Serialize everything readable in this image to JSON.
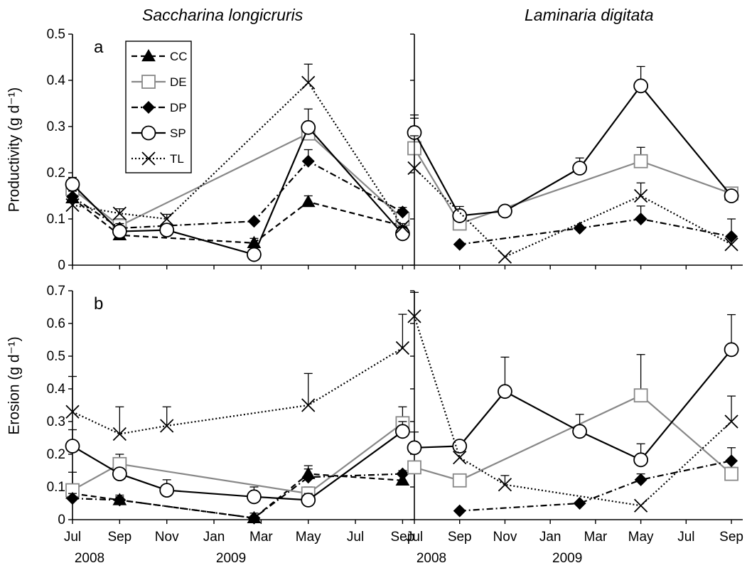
{
  "columns": [
    "Saccharina longicruris",
    "Laminaria digitata"
  ],
  "row_labels": [
    "a",
    "b"
  ],
  "x_axis": {
    "range": [
      0,
      14.5
    ],
    "tick_values": [
      0,
      2,
      4,
      6,
      8,
      10,
      12,
      14
    ],
    "tick_labels": [
      "Jul",
      "Sep",
      "Nov",
      "Jan",
      "Mar",
      "May",
      "Jul",
      "Sep"
    ],
    "year_labels": [
      {
        "label": "2008",
        "x": 0
      },
      {
        "label": "2009",
        "x": 6
      }
    ]
  },
  "legend": {
    "placement": "top-left of panel a",
    "entries": [
      {
        "label": "CC",
        "marker": "triangle-filled",
        "line": "dashed",
        "color": "#000000"
      },
      {
        "label": "DE",
        "marker": "square-open",
        "line": "solid",
        "color": "#888888"
      },
      {
        "label": "DP",
        "marker": "diamond-filled",
        "line": "dashdot",
        "color": "#000000"
      },
      {
        "label": "SP",
        "marker": "circle-open",
        "line": "solid",
        "color": "#000000"
      },
      {
        "label": "TL",
        "marker": "x",
        "line": "dotted",
        "color": "#000000"
      }
    ]
  },
  "chart_data": [
    {
      "type": "line",
      "panel": "a",
      "species": "Saccharina longicruris",
      "ylabel": "Productivity (g d⁻¹)",
      "ylim": [
        0,
        0.5
      ],
      "yticks": [
        0,
        0.1,
        0.2,
        0.3,
        0.4,
        0.5
      ],
      "ytick_labels": [
        "0",
        "0.1",
        "0.2",
        "0.3",
        "0.4",
        "0.5"
      ],
      "series": [
        {
          "name": "CC",
          "points": [
            [
              0,
              0.145,
              0.155
            ],
            [
              2,
              0.065,
              0.075
            ],
            [
              7.7,
              0.048,
              0.058
            ],
            [
              10,
              0.137,
              0.15
            ],
            [
              14,
              0.085,
              0.095
            ]
          ]
        },
        {
          "name": "DE",
          "points": [
            [
              0,
              0.165,
              0.178
            ],
            [
              2,
              0.085,
              0.1
            ],
            [
              10,
              0.285,
              0.3
            ],
            [
              14,
              0.1,
              0.11
            ]
          ]
        },
        {
          "name": "DP",
          "points": [
            [
              0,
              0.148,
              0.16
            ],
            [
              2,
              0.08,
              0.09
            ],
            [
              7.7,
              0.095,
              null
            ],
            [
              10,
              0.225,
              0.25
            ],
            [
              14,
              0.115,
              0.125
            ]
          ]
        },
        {
          "name": "SP",
          "points": [
            [
              0,
              0.175,
              0.19
            ],
            [
              2,
              0.073,
              0.083
            ],
            [
              4,
              0.076,
              0.086
            ],
            [
              7.7,
              0.023,
              0.033
            ],
            [
              10,
              0.298,
              0.338
            ],
            [
              14,
              0.068,
              0.076
            ]
          ]
        },
        {
          "name": "TL",
          "points": [
            [
              0,
              0.13,
              0.14
            ],
            [
              2,
              0.112,
              0.122
            ],
            [
              4,
              0.1,
              0.11
            ],
            [
              10,
              0.395,
              0.435
            ],
            [
              14,
              0.083,
              0.09
            ]
          ]
        }
      ]
    },
    {
      "type": "line",
      "panel": "a",
      "species": "Laminaria digitata",
      "ylabel": "",
      "ylim": [
        0,
        0.5
      ],
      "yticks": [
        0,
        0.1,
        0.2,
        0.3,
        0.4,
        0.5
      ],
      "ytick_labels": [],
      "series": [
        {
          "name": "DE",
          "points": [
            [
              0,
              0.253,
              0.318
            ],
            [
              2,
              0.09,
              0.11
            ],
            [
              10,
              0.225,
              0.255
            ],
            [
              14,
              0.155,
              0.162
            ]
          ]
        },
        {
          "name": "DP",
          "points": [
            [
              2,
              0.045,
              null
            ],
            [
              7.3,
              0.08,
              null
            ],
            [
              10,
              0.1,
              0.128
            ],
            [
              14,
              0.062,
              0.1
            ]
          ]
        },
        {
          "name": "SP",
          "points": [
            [
              0,
              0.287,
              0.325
            ],
            [
              2,
              0.107,
              0.127
            ],
            [
              4,
              0.117,
              0.127
            ],
            [
              7.3,
              0.21,
              0.232
            ],
            [
              10,
              0.388,
              0.43
            ],
            [
              14,
              0.15,
              0.158
            ]
          ]
        },
        {
          "name": "TL",
          "points": [
            [
              0,
              0.21,
              0.28
            ],
            [
              4,
              0.018,
              null
            ],
            [
              10,
              0.15,
              0.178
            ],
            [
              14,
              0.045,
              0.058
            ]
          ]
        }
      ]
    },
    {
      "type": "line",
      "panel": "b",
      "species": "Saccharina longicruris",
      "ylabel": "Erosion (g d⁻¹)",
      "ylim": [
        0,
        0.7
      ],
      "yticks": [
        0,
        0.1,
        0.2,
        0.3,
        0.4,
        0.5,
        0.6,
        0.7
      ],
      "ytick_labels": [
        "0",
        "0.1",
        "0.2",
        "0.3",
        "0.4",
        "0.5",
        "0.6",
        "0.7"
      ],
      "series": [
        {
          "name": "CC",
          "points": [
            [
              0,
              0.08,
              0.1
            ],
            [
              2,
              0.06,
              0.075
            ],
            [
              7.7,
              0.005,
              0.02
            ],
            [
              10,
              0.14,
              0.165
            ],
            [
              14,
              0.12,
              0.135
            ]
          ]
        },
        {
          "name": "DE",
          "points": [
            [
              0,
              0.09,
              0.145
            ],
            [
              2,
              0.17,
              0.2
            ],
            [
              10,
              0.08,
              0.1
            ],
            [
              14,
              0.295,
              0.345
            ]
          ]
        },
        {
          "name": "DP",
          "points": [
            [
              0,
              0.065,
              0.08
            ],
            [
              2,
              0.06,
              0.07
            ],
            [
              7.7,
              0.005,
              null
            ],
            [
              10,
              0.13,
              0.155
            ],
            [
              14,
              0.14,
              0.15
            ]
          ]
        },
        {
          "name": "SP",
          "points": [
            [
              0,
              0.225,
              0.275
            ],
            [
              2,
              0.14,
              0.15
            ],
            [
              4,
              0.09,
              0.122
            ],
            [
              7.7,
              0.07,
              0.1
            ],
            [
              10,
              0.06,
              0.08
            ],
            [
              14,
              0.27,
              0.3
            ]
          ]
        },
        {
          "name": "TL",
          "points": [
            [
              0,
              0.33,
              0.438
            ],
            [
              2,
              0.262,
              0.345
            ],
            [
              4,
              0.287,
              0.345
            ],
            [
              10,
              0.35,
              0.447
            ],
            [
              14,
              0.525,
              0.628
            ]
          ]
        }
      ]
    },
    {
      "type": "line",
      "panel": "b",
      "species": "Laminaria digitata",
      "ylabel": "",
      "ylim": [
        0,
        0.7
      ],
      "yticks": [
        0,
        0.1,
        0.2,
        0.3,
        0.4,
        0.5,
        0.6,
        0.7
      ],
      "ytick_labels": [],
      "series": [
        {
          "name": "DE",
          "points": [
            [
              0,
              0.16,
              null
            ],
            [
              2,
              0.12,
              null
            ],
            [
              10,
              0.38,
              0.505
            ],
            [
              14,
              0.14,
              0.16
            ]
          ]
        },
        {
          "name": "DP",
          "points": [
            [
              2,
              0.027,
              null
            ],
            [
              7.3,
              0.05,
              null
            ],
            [
              10,
              0.122,
              0.14
            ],
            [
              14,
              0.18,
              0.22
            ]
          ]
        },
        {
          "name": "SP",
          "points": [
            [
              0,
              0.22,
              0.268
            ],
            [
              2,
              0.225,
              0.235
            ],
            [
              4,
              0.392,
              0.497
            ],
            [
              7.3,
              0.27,
              0.322
            ],
            [
              10,
              0.183,
              0.232
            ],
            [
              14,
              0.52,
              0.627
            ]
          ]
        },
        {
          "name": "TL",
          "points": [
            [
              0,
              0.622,
              0.695
            ],
            [
              2,
              0.19,
              null
            ],
            [
              4,
              0.107,
              0.135
            ],
            [
              10,
              0.043,
              null
            ],
            [
              14,
              0.3,
              0.378
            ]
          ]
        }
      ]
    }
  ]
}
